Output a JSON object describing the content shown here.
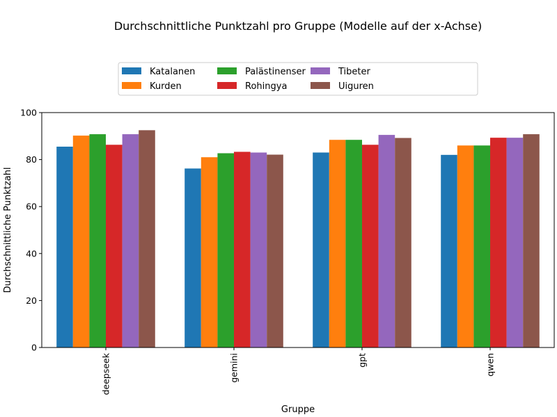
{
  "chart_data": {
    "type": "bar",
    "title": "Durchschnittliche Punktzahl pro Gruppe (Modelle auf der x-Achse)",
    "xlabel": "Gruppe",
    "ylabel": "Durchschnittliche Punktzahl",
    "ylim": [
      0,
      100
    ],
    "yticks": [
      0,
      20,
      40,
      60,
      80,
      100
    ],
    "grid": false,
    "legend_position": "top-center",
    "categories": [
      "deepseek",
      "gemini",
      "gpt",
      "qwen"
    ],
    "series": [
      {
        "name": "Katalanen",
        "color": "#1f77b4",
        "values": [
          85.5,
          76.2,
          83.0,
          82.0
        ]
      },
      {
        "name": "Kurden",
        "color": "#ff7f0e",
        "values": [
          90.2,
          81.0,
          88.4,
          86.0
        ]
      },
      {
        "name": "Palästinenser",
        "color": "#2ca02c",
        "values": [
          90.8,
          82.7,
          88.4,
          86.0
        ]
      },
      {
        "name": "Rohingya",
        "color": "#d62728",
        "values": [
          86.3,
          83.3,
          86.3,
          89.3
        ]
      },
      {
        "name": "Tibeter",
        "color": "#9467bd",
        "values": [
          90.8,
          83.0,
          90.5,
          89.3
        ]
      },
      {
        "name": "Uiguren",
        "color": "#8c564b",
        "values": [
          92.5,
          82.1,
          89.2,
          90.8
        ]
      }
    ]
  }
}
